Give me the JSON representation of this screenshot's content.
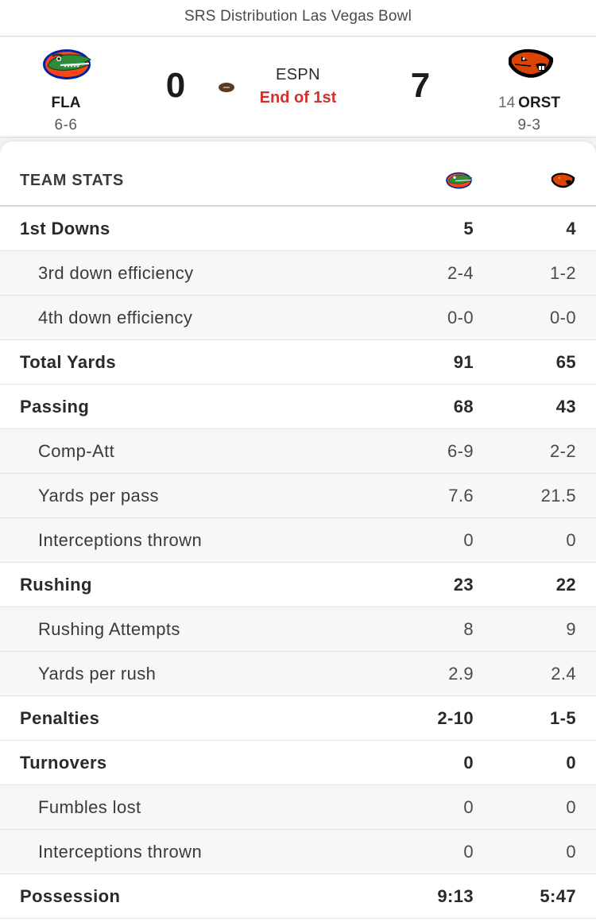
{
  "header": {
    "title": "SRS Distribution Las Vegas Bowl"
  },
  "game": {
    "away": {
      "abbr": "FLA",
      "record": "6-6",
      "score": "0",
      "logo": "florida-gators-logo",
      "colors": {
        "primary": "#0021a5",
        "secondary": "#fa4616",
        "gator": "#2e8b3c"
      }
    },
    "home": {
      "rank": "14",
      "abbr": "ORST",
      "record": "9-3",
      "score": "7",
      "logo": "oregon-state-beavers-logo",
      "colors": {
        "primary": "#dc4405",
        "secondary": "#000000"
      }
    },
    "network": "ESPN",
    "status": "End of 1st",
    "status_color": "#d0312d",
    "possession_icon": "football-icon"
  },
  "stats": {
    "title": "TEAM STATS",
    "rows": [
      {
        "label": "1st Downs",
        "away": "5",
        "home": "4",
        "type": "main"
      },
      {
        "label": "3rd down efficiency",
        "away": "2-4",
        "home": "1-2",
        "type": "sub"
      },
      {
        "label": "4th down efficiency",
        "away": "0-0",
        "home": "0-0",
        "type": "sub"
      },
      {
        "label": "Total Yards",
        "away": "91",
        "home": "65",
        "type": "main"
      },
      {
        "label": "Passing",
        "away": "68",
        "home": "43",
        "type": "main"
      },
      {
        "label": "Comp-Att",
        "away": "6-9",
        "home": "2-2",
        "type": "sub"
      },
      {
        "label": "Yards per pass",
        "away": "7.6",
        "home": "21.5",
        "type": "sub"
      },
      {
        "label": "Interceptions thrown",
        "away": "0",
        "home": "0",
        "type": "sub"
      },
      {
        "label": "Rushing",
        "away": "23",
        "home": "22",
        "type": "main"
      },
      {
        "label": "Rushing Attempts",
        "away": "8",
        "home": "9",
        "type": "sub"
      },
      {
        "label": "Yards per rush",
        "away": "2.9",
        "home": "2.4",
        "type": "sub"
      },
      {
        "label": "Penalties",
        "away": "2-10",
        "home": "1-5",
        "type": "main"
      },
      {
        "label": "Turnovers",
        "away": "0",
        "home": "0",
        "type": "main"
      },
      {
        "label": "Fumbles lost",
        "away": "0",
        "home": "0",
        "type": "sub"
      },
      {
        "label": "Interceptions thrown",
        "away": "0",
        "home": "0",
        "type": "sub"
      },
      {
        "label": "Possession",
        "away": "9:13",
        "home": "5:47",
        "type": "main"
      }
    ]
  }
}
